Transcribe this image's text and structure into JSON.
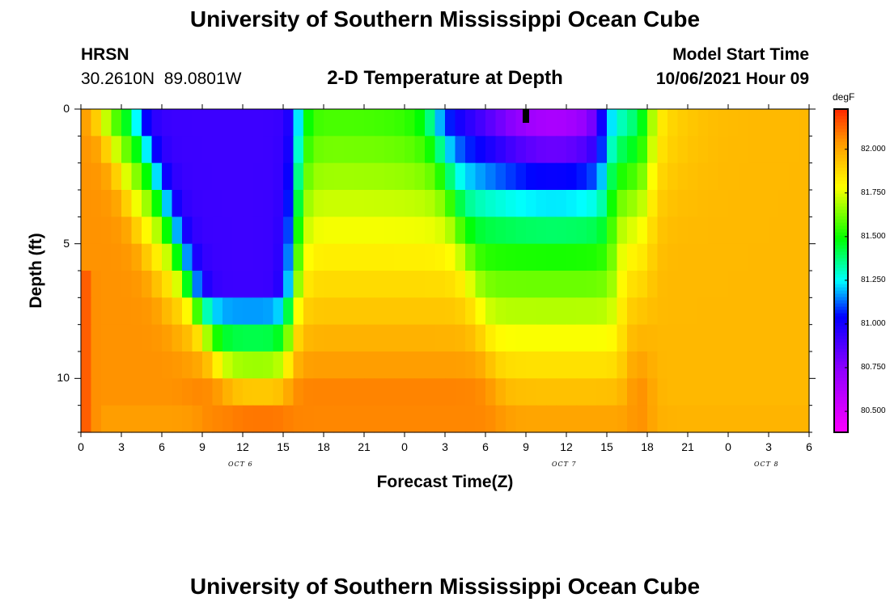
{
  "header": {
    "title_top": "University of Southern Mississippi Ocean Cube",
    "title_bottom": "University of Southern Mississippi Ocean Cube",
    "station": "HRSN",
    "coords": "30.2610N  89.0801W",
    "plot_title": "2-D Temperature at Depth",
    "model_label": "Model Start Time",
    "model_time": "10/06/2021 Hour 09"
  },
  "chart_data": {
    "type": "heatmap",
    "title": "2-D Temperature at Depth",
    "xlabel": "Forecast Time(Z)",
    "ylabel": "Depth (ft)",
    "x_ticks": [
      "0",
      "3",
      "6",
      "9",
      "12",
      "15",
      "18",
      "21",
      "0",
      "3",
      "6",
      "9",
      "12",
      "15",
      "18",
      "21",
      "0",
      "3",
      "6"
    ],
    "x_hours": [
      0,
      3,
      6,
      9,
      12,
      15,
      18,
      21,
      24,
      27,
      30,
      33,
      36,
      39,
      42,
      45,
      48,
      51,
      54
    ],
    "date_labels": [
      {
        "text": "OCT 6",
        "hour": 12
      },
      {
        "text": "OCT 7",
        "hour": 36
      },
      {
        "text": "OCT 8",
        "hour": 51
      }
    ],
    "y_ticks": [
      "0",
      "5",
      "10"
    ],
    "y_tick_values": [
      0,
      5,
      10
    ],
    "ylim": [
      0,
      12
    ],
    "xlim": [
      0,
      54
    ],
    "depth_levels_ft": [
      0.5,
      1.5,
      2.5,
      3.5,
      4.5,
      5.5,
      6.5,
      7.5,
      8.5,
      9.5,
      10.5,
      11.5
    ],
    "colorbar": {
      "unit": "degF",
      "ticks": [
        "82.000",
        "81.750",
        "81.500",
        "81.250",
        "81.000",
        "80.750",
        "80.500"
      ],
      "tick_values": [
        82.0,
        81.75,
        81.5,
        81.25,
        81.0,
        80.75,
        80.5
      ],
      "range": [
        80.38,
        82.23
      ]
    },
    "marker": {
      "hour": 33,
      "depth_ft": 0.5
    }
  }
}
